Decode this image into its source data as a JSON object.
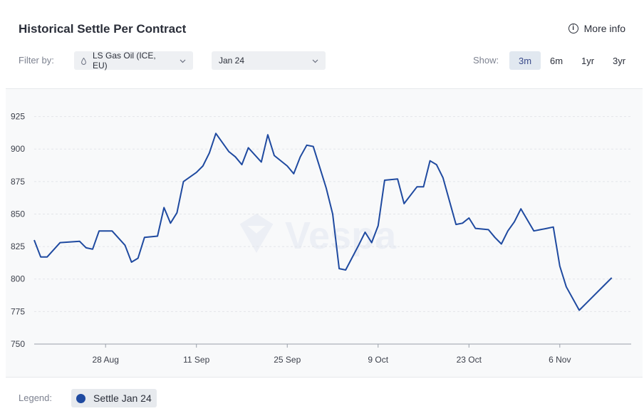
{
  "header": {
    "title": "Historical Settle Per Contract",
    "more_info_label": "More info",
    "more_info_icon": "info-circle-icon"
  },
  "filters": {
    "label": "Filter by:",
    "commodity": "LS Gas Oil (ICE, EU)",
    "commodity_icon": "drop-icon",
    "contract": "Jan 24"
  },
  "range": {
    "label": "Show:",
    "options": [
      "3m",
      "6m",
      "1yr",
      "3yr"
    ],
    "selected": "3m"
  },
  "legend": {
    "label": "Legend:",
    "items": [
      {
        "label": "Settle Jan 24",
        "color": "#1f4aa0"
      }
    ]
  },
  "watermark": "Vespa",
  "colors": {
    "line": "#1f4aa0",
    "grid": "#e3e5e9",
    "active_range_bg": "#e1e8f0"
  },
  "chart_data": {
    "type": "line",
    "x_ticks": [
      {
        "label": "28 Aug",
        "day": 11
      },
      {
        "label": "11 Sep",
        "day": 25
      },
      {
        "label": "25 Sep",
        "day": 39
      },
      {
        "label": "9 Oct",
        "day": 53
      },
      {
        "label": "23 Oct",
        "day": 67
      },
      {
        "label": "6 Nov",
        "day": 81
      }
    ],
    "y_ticks": [
      750,
      775,
      800,
      825,
      850,
      875,
      900,
      925
    ],
    "ylim": [
      750,
      933
    ],
    "xlim": [
      0,
      92
    ],
    "grid": true,
    "series": [
      {
        "name": "Settle Jan 24",
        "x": [
          0,
          1,
          2,
          4,
          7,
          8,
          9,
          10,
          11,
          12,
          14,
          15,
          16,
          17,
          19,
          20,
          21,
          22,
          23,
          25,
          26,
          27,
          28,
          30,
          31,
          32,
          33,
          35,
          36,
          37,
          39,
          40,
          41,
          42,
          43,
          45,
          46,
          47,
          48,
          50,
          51,
          52,
          53,
          54,
          56,
          57,
          59,
          60,
          61,
          62,
          63,
          65,
          66,
          67,
          68,
          70,
          71,
          72,
          73,
          74,
          75,
          77,
          78,
          79,
          80,
          81,
          82,
          84,
          85,
          86,
          88,
          89
        ],
        "y": [
          830,
          817,
          817,
          828,
          829,
          824,
          823,
          837,
          837,
          837,
          826,
          813,
          816,
          832,
          833,
          855,
          843,
          851,
          875,
          882,
          887,
          897,
          912,
          898,
          894,
          888,
          901,
          890,
          911,
          895,
          887,
          881,
          894,
          903,
          902,
          870,
          850,
          808,
          807,
          826,
          836,
          828,
          841,
          876,
          877,
          858,
          871,
          871,
          891,
          888,
          878,
          842,
          843,
          847,
          839,
          838,
          832,
          827,
          837,
          844,
          854,
          837,
          838,
          839,
          840,
          810,
          794,
          776,
          781,
          786,
          796,
          801
        ]
      }
    ]
  }
}
